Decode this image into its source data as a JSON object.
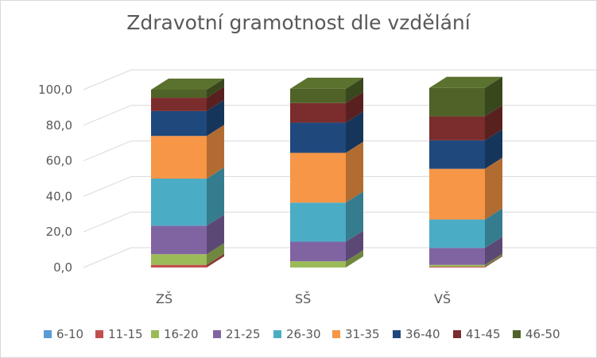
{
  "chart_data": {
    "type": "bar",
    "stacked": true,
    "three_d": true,
    "title": "Zdravotní gramotnost dle vzdělání",
    "categories": [
      "ZŠ",
      "SŠ",
      "VŠ"
    ],
    "ylim": [
      0,
      100
    ],
    "yticks": [
      "0,0",
      "20,0",
      "40,0",
      "60,0",
      "80,0",
      "100,0"
    ],
    "grid": true,
    "legend_position": "bottom",
    "series": [
      {
        "name": "6-10",
        "color": "#5b9bd5",
        "values": [
          0.0,
          0.0,
          0.0
        ]
      },
      {
        "name": "11-15",
        "color": "#c0504d",
        "values": [
          1.5,
          0.0,
          0.5
        ]
      },
      {
        "name": "16-20",
        "color": "#9bbb59",
        "values": [
          6.0,
          3.5,
          1.0
        ]
      },
      {
        "name": "21-25",
        "color": "#8064a2",
        "values": [
          16.0,
          11.0,
          9.5
        ]
      },
      {
        "name": "26-30",
        "color": "#4bacc6",
        "values": [
          26.5,
          22.0,
          16.0
        ]
      },
      {
        "name": "31-35",
        "color": "#f79646",
        "values": [
          24.0,
          28.0,
          28.5
        ]
      },
      {
        "name": "36-40",
        "color": "#1f497d",
        "values": [
          14.0,
          17.0,
          16.0
        ]
      },
      {
        "name": "41-45",
        "color": "#7b2c2c",
        "values": [
          7.5,
          11.0,
          13.5
        ]
      },
      {
        "name": "46-50",
        "color": "#4f6228",
        "values": [
          4.5,
          8.0,
          16.0
        ]
      }
    ]
  }
}
